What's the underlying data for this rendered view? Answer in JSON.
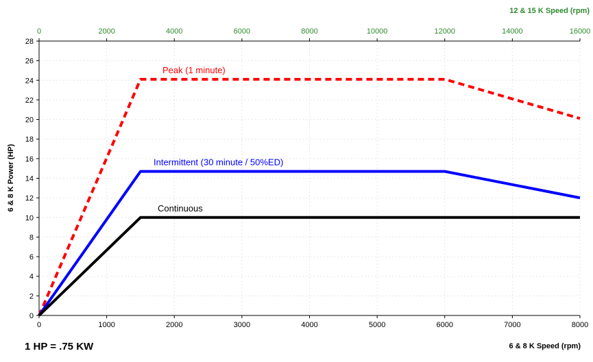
{
  "chart_data": {
    "type": "line",
    "xlabel": "6 &  8 K Speed (rpm)",
    "x2label": "12 & 15 K Speed (rpm)",
    "ylabel": "6 & 8 K Power (HP)",
    "xlim": [
      0,
      8000
    ],
    "x2lim": [
      0,
      16000
    ],
    "ylim": [
      0,
      28
    ],
    "xticks": [
      0,
      1000,
      2000,
      3000,
      4000,
      5000,
      6000,
      7000,
      8000
    ],
    "x2ticks": [
      0,
      2000,
      4000,
      6000,
      8000,
      10000,
      12000,
      14000,
      16000
    ],
    "yticks": [
      0,
      2,
      4,
      6,
      8,
      10,
      12,
      14,
      16,
      18,
      20,
      22,
      24,
      26,
      28
    ],
    "grid": true,
    "series": [
      {
        "name": "Peak (1 minute)",
        "color": "#ff0000",
        "style": "dashed",
        "x": [
          0,
          1500,
          6000,
          8000
        ],
        "y": [
          0,
          24.1,
          24.1,
          20.1
        ]
      },
      {
        "name": "Intermittent (30 minute / 50%ED)",
        "color": "#0000ff",
        "style": "solid",
        "x": [
          0,
          1500,
          6000,
          8000
        ],
        "y": [
          0,
          14.7,
          14.7,
          12
        ]
      },
      {
        "name": "Continuous",
        "color": "#000000",
        "style": "solid",
        "x": [
          0,
          1500,
          8000
        ],
        "y": [
          0,
          10,
          10
        ]
      }
    ]
  },
  "footnote": "1 HP = .75 KW"
}
